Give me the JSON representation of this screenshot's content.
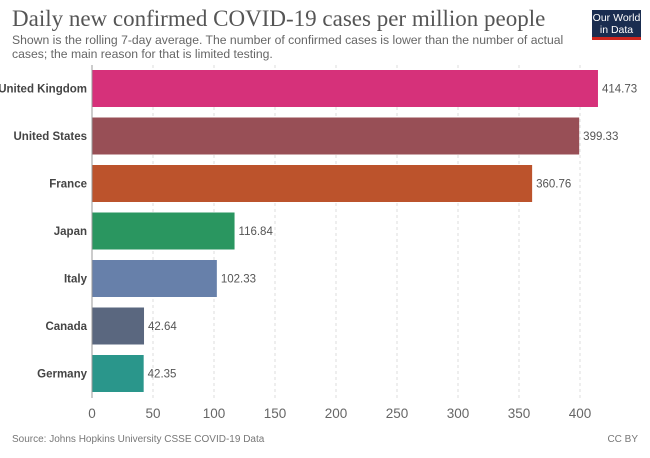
{
  "header": {
    "title": "Daily new confirmed COVID-19 cases per million people",
    "subtitle": "Shown is the rolling 7-day average. The number of confirmed cases is lower than the number of actual cases; the main reason for that is limited testing.",
    "logo_line1": "Our World",
    "logo_line2": "in Data"
  },
  "footer": {
    "source": "Source: Johns Hopkins University CSSE COVID-19 Data",
    "license": "CC BY"
  },
  "chart_data": {
    "type": "bar",
    "orientation": "horizontal",
    "title": "Daily new confirmed COVID-19 cases per million people",
    "xlabel": "",
    "ylabel": "",
    "xlim": [
      0,
      420
    ],
    "grid": true,
    "categories": [
      "United Kingdom",
      "United States",
      "France",
      "Japan",
      "Italy",
      "Canada",
      "Germany"
    ],
    "values": [
      414.73,
      399.33,
      360.76,
      116.84,
      102.33,
      42.64,
      42.35
    ],
    "value_labels": [
      "414.73",
      "399.33",
      "360.76",
      "116.84",
      "102.33",
      "42.64",
      "42.35"
    ],
    "colors": [
      "#d6317a",
      "#984f56",
      "#bc532c",
      "#2a9660",
      "#6780aa",
      "#5a677f",
      "#2a968b"
    ],
    "xticks": [
      0,
      50,
      100,
      150,
      200,
      250,
      300,
      350,
      400
    ]
  }
}
